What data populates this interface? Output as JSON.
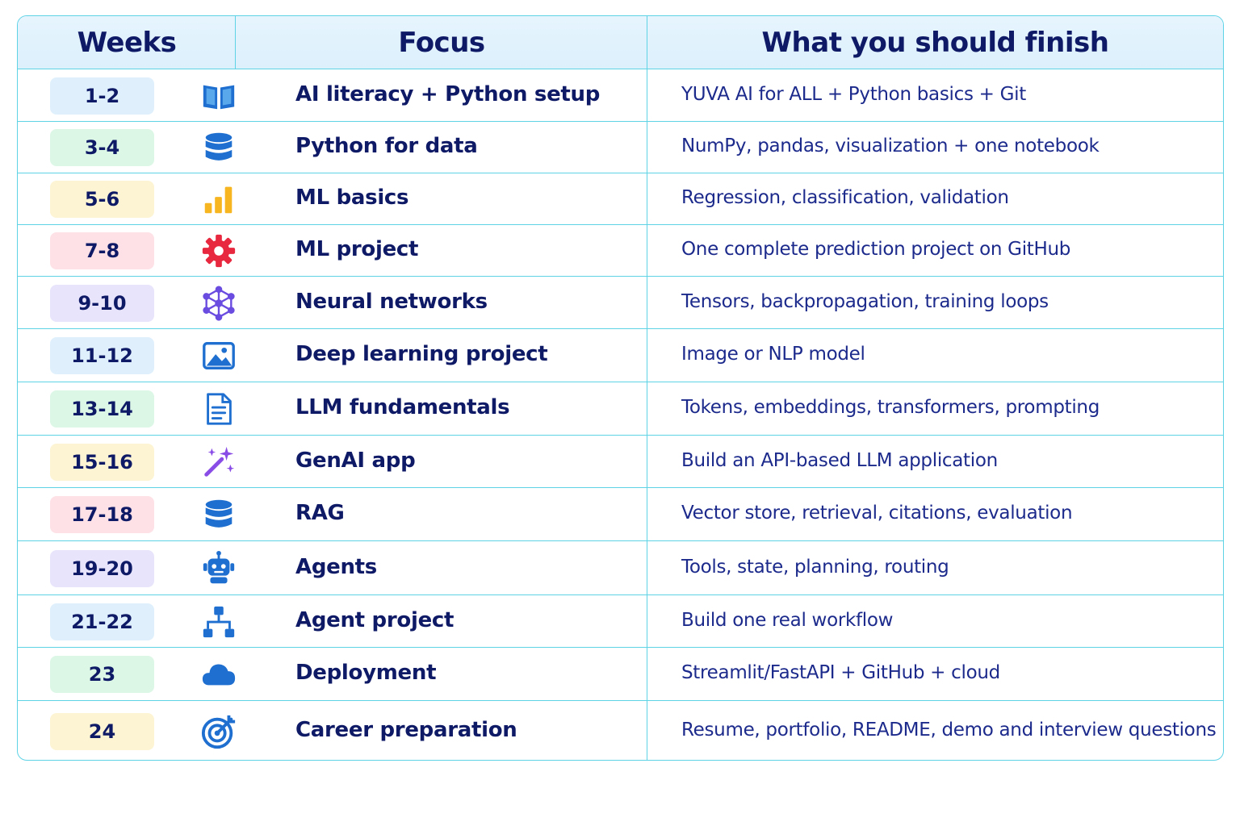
{
  "header": {
    "weeks": "Weeks",
    "focus": "Focus",
    "finish": "What you should finish"
  },
  "colors": {
    "border": "#5fd3e6",
    "header_bg": "#dcf0fc",
    "text_dark": "#0f1a66",
    "text_body": "#1c2a8c",
    "icon_blue": "#1e6fcf"
  },
  "rows": [
    {
      "weeks": "1-2",
      "icon": "book-icon",
      "badge_color": "#dff0fc",
      "focus": "AI literacy + Python setup",
      "finish": "YUVA AI for ALL + Python basics + Git"
    },
    {
      "weeks": "3-4",
      "icon": "database-icon",
      "badge_color": "#dcf7e6",
      "focus": "Python for data",
      "finish": "NumPy, pandas, visualization + one notebook"
    },
    {
      "weeks": "5-6",
      "icon": "bar-chart-icon",
      "badge_color": "#fdf4d4",
      "focus": "ML basics",
      "finish": "Regression, classification, validation"
    },
    {
      "weeks": "7-8",
      "icon": "gear-icon",
      "badge_color": "#fde1e6",
      "focus": "ML project",
      "finish": "One complete prediction project on GitHub"
    },
    {
      "weeks": "9-10",
      "icon": "network-icon",
      "badge_color": "#e8e4fb",
      "focus": "Neural networks",
      "finish": "Tensors, backpropagation, training loops"
    },
    {
      "weeks": "11-12",
      "icon": "image-icon",
      "badge_color": "#dff0fc",
      "focus": "Deep learning project",
      "finish": "Image or NLP model"
    },
    {
      "weeks": "13-14",
      "icon": "document-icon",
      "badge_color": "#dcf7e6",
      "focus": "LLM fundamentals",
      "finish": "Tokens, embeddings, transformers, prompting"
    },
    {
      "weeks": "15-16",
      "icon": "magic-wand-icon",
      "badge_color": "#fdf4d4",
      "focus": "GenAI app",
      "finish": "Build an API-based LLM application"
    },
    {
      "weeks": "17-18",
      "icon": "database-icon",
      "badge_color": "#fde1e6",
      "focus": "RAG",
      "finish": "Vector store, retrieval, citations, evaluation"
    },
    {
      "weeks": "19-20",
      "icon": "robot-icon",
      "badge_color": "#e8e4fb",
      "focus": "Agents",
      "finish": "Tools, state, planning, routing"
    },
    {
      "weeks": "21-22",
      "icon": "hierarchy-icon",
      "badge_color": "#dff0fc",
      "focus": "Agent project",
      "finish": "Build one real workflow"
    },
    {
      "weeks": "23",
      "icon": "cloud-icon",
      "badge_color": "#dcf7e6",
      "focus": "Deployment",
      "finish": "Streamlit/FastAPI + GitHub + cloud"
    },
    {
      "weeks": "24",
      "icon": "target-icon",
      "badge_color": "#fdf4d4",
      "focus": "Career preparation",
      "finish": "Resume, portfolio, README, demo and interview questions"
    }
  ]
}
